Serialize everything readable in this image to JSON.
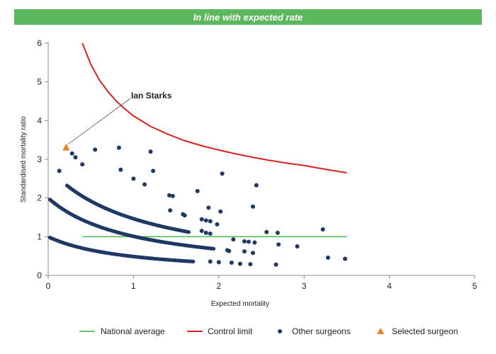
{
  "header": {
    "banner_text": "In line with expected rate",
    "banner_color": "#5cb85c"
  },
  "chart_data": {
    "type": "scatter",
    "title": "",
    "xlabel": "Expected mortality",
    "ylabel": "Standardised mortality ratio",
    "xlim": [
      0,
      5
    ],
    "ylim": [
      0,
      6
    ],
    "xticks": [
      0,
      1,
      2,
      3,
      4,
      5
    ],
    "yticks": [
      0,
      1,
      2,
      3,
      4,
      5,
      6
    ],
    "grid": false,
    "legend_position": "bottom",
    "colors": {
      "national_average": "#5cb85c",
      "control_limit": "#dd2222",
      "other_surgeons": "#1f3864",
      "selected_surgeon": "#e8831f"
    },
    "national_average": {
      "name": "National average",
      "x": [
        0.4,
        3.5
      ],
      "y": 1.0
    },
    "control_limit": {
      "name": "Control limit",
      "points": [
        [
          0.4,
          6.0
        ],
        [
          0.5,
          5.45
        ],
        [
          0.6,
          5.05
        ],
        [
          0.7,
          4.75
        ],
        [
          0.8,
          4.5
        ],
        [
          0.9,
          4.3
        ],
        [
          1.0,
          4.12
        ],
        [
          1.2,
          3.85
        ],
        [
          1.4,
          3.65
        ],
        [
          1.6,
          3.48
        ],
        [
          1.8,
          3.35
        ],
        [
          2.0,
          3.24
        ],
        [
          2.2,
          3.14
        ],
        [
          2.4,
          3.05
        ],
        [
          2.6,
          2.97
        ],
        [
          2.8,
          2.9
        ],
        [
          3.0,
          2.84
        ],
        [
          3.2,
          2.76
        ],
        [
          3.5,
          2.65
        ]
      ]
    },
    "other_surgeons": {
      "name": "Other surgeons",
      "points": [
        [
          0.13,
          2.7
        ],
        [
          0.28,
          3.15
        ],
        [
          0.32,
          3.05
        ],
        [
          0.4,
          2.87
        ],
        [
          0.55,
          3.25
        ],
        [
          0.83,
          3.3
        ],
        [
          1.2,
          3.2
        ],
        [
          0.85,
          2.73
        ],
        [
          1.0,
          2.5
        ],
        [
          1.13,
          2.35
        ],
        [
          1.23,
          2.7
        ],
        [
          1.42,
          2.07
        ],
        [
          1.46,
          2.05
        ],
        [
          1.6,
          1.55
        ],
        [
          1.58,
          1.58
        ],
        [
          1.43,
          1.68
        ],
        [
          1.75,
          2.18
        ],
        [
          1.88,
          1.75
        ],
        [
          1.8,
          1.45
        ],
        [
          1.85,
          1.42
        ],
        [
          1.9,
          1.4
        ],
        [
          1.8,
          1.15
        ],
        [
          1.85,
          1.1
        ],
        [
          1.9,
          1.08
        ],
        [
          1.98,
          1.32
        ],
        [
          2.02,
          1.65
        ],
        [
          2.04,
          2.63
        ],
        [
          2.1,
          0.65
        ],
        [
          2.12,
          0.63
        ],
        [
          2.17,
          0.93
        ],
        [
          2.25,
          0.3
        ],
        [
          2.3,
          0.88
        ],
        [
          2.35,
          0.87
        ],
        [
          2.3,
          0.62
        ],
        [
          2.4,
          0.58
        ],
        [
          2.42,
          0.85
        ],
        [
          2.37,
          0.29
        ],
        [
          2.4,
          1.78
        ],
        [
          2.44,
          2.33
        ],
        [
          2.56,
          1.12
        ],
        [
          2.67,
          0.28
        ],
        [
          2.69,
          1.1
        ],
        [
          2.7,
          0.8
        ],
        [
          2.92,
          0.75
        ],
        [
          3.22,
          1.19
        ],
        [
          3.28,
          0.46
        ],
        [
          3.48,
          0.43
        ],
        [
          2.15,
          0.33
        ],
        [
          2.0,
          0.34
        ],
        [
          1.9,
          0.36
        ]
      ]
    },
    "selected_surgeon": {
      "name": "Selected surgeon",
      "label": "Ian Starks",
      "x": 0.21,
      "y": 3.3
    },
    "legend": [
      "National average",
      "Control limit",
      "Other surgeons",
      "Selected surgeon"
    ]
  }
}
